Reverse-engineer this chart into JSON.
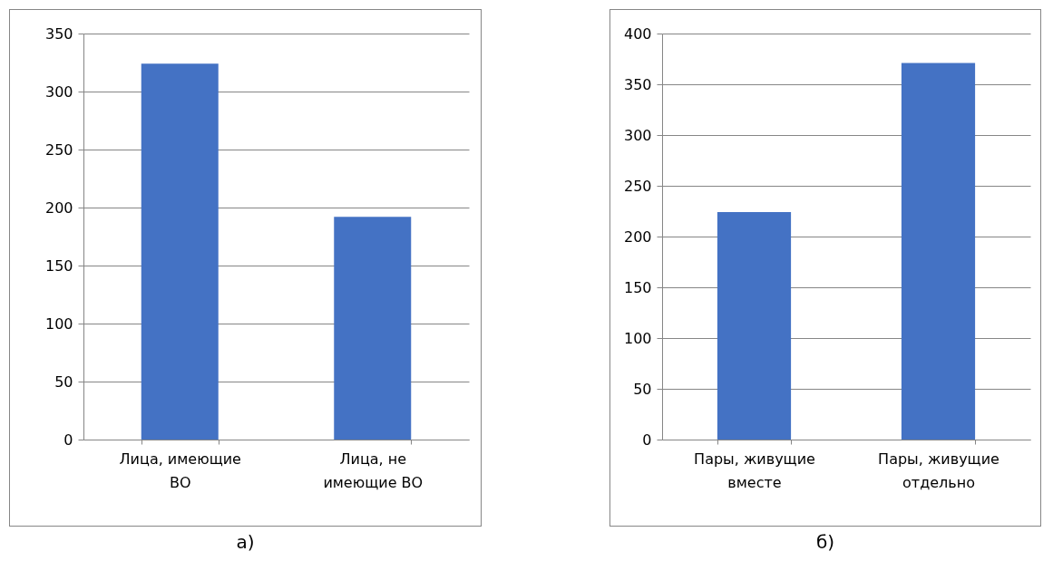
{
  "chart_data": [
    {
      "type": "bar",
      "title": "а)",
      "categories": [
        "Лица, имеющие ВО",
        "Лица, не имеющие ВО"
      ],
      "values": [
        324,
        192
      ],
      "color": "#4472c4",
      "ylim": [
        0,
        350
      ],
      "yticks": [
        0,
        50,
        100,
        150,
        200,
        250,
        300,
        350
      ],
      "grid": "y"
    },
    {
      "type": "bar",
      "title": "б)",
      "categories": [
        "Пары, живущие вместе",
        "Пары, живущие отдельно"
      ],
      "values": [
        224,
        371
      ],
      "color": "#4472c4",
      "ylim": [
        0,
        400
      ],
      "yticks": [
        0,
        50,
        100,
        150,
        200,
        250,
        300,
        350,
        400
      ],
      "grid": "y"
    }
  ]
}
